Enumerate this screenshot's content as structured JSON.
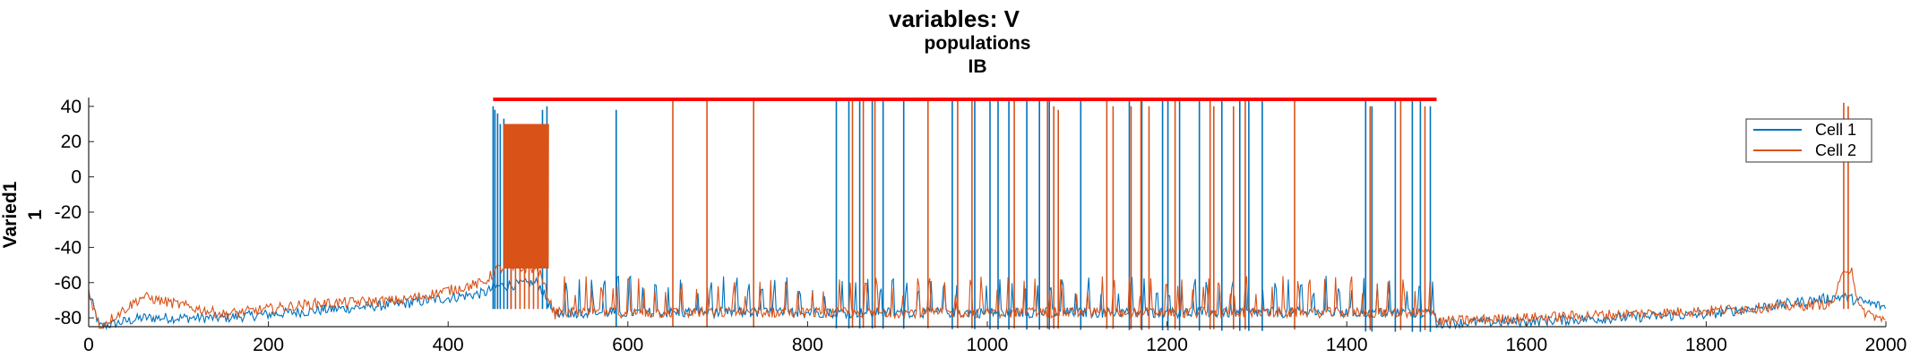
{
  "chart_data": {
    "type": "line",
    "title": [
      "variables: V",
      "populations",
      "IB"
    ],
    "ylabel": [
      "Varied1",
      "1"
    ],
    "xlabel": "",
    "xlim": [
      0,
      2000
    ],
    "ylim": [
      -85,
      45
    ],
    "xticks": [
      0,
      200,
      400,
      600,
      800,
      1000,
      1200,
      1400,
      1600,
      1800,
      2000
    ],
    "yticks": [
      40,
      20,
      0,
      -20,
      -40,
      -60,
      -80
    ],
    "grid": false,
    "legend_position": "top-right",
    "colors": {
      "cell1": "#0072bd",
      "cell2": "#d95319",
      "raster": "#ff0000"
    },
    "raster_line": {
      "x": [
        450,
        1500
      ],
      "y": 44
    },
    "series": [
      {
        "name": "Cell 1",
        "color": "#0072bd",
        "baseline": [
          [
            0,
            -65
          ],
          [
            12,
            -85
          ],
          [
            60,
            -80
          ],
          [
            150,
            -80
          ],
          [
            250,
            -76
          ],
          [
            350,
            -72
          ],
          [
            440,
            -66
          ],
          [
            455,
            -62
          ],
          [
            500,
            -60
          ],
          [
            520,
            -80
          ],
          [
            1500,
            -83
          ],
          [
            1600,
            -82
          ],
          [
            1800,
            -78
          ],
          [
            1950,
            -68
          ],
          [
            2000,
            -74
          ]
        ],
        "bursts": [
          [
            450,
            40
          ],
          [
            452,
            38
          ],
          [
            455,
            36
          ],
          [
            458,
            30
          ],
          [
            462,
            33
          ],
          [
            466,
            30
          ],
          [
            470,
            28
          ],
          [
            505,
            38
          ],
          [
            510,
            40
          ],
          [
            587,
            38
          ],
          [
            832,
            44
          ],
          [
            846,
            44
          ],
          [
            858,
            44
          ],
          [
            872,
            44
          ],
          [
            884,
            44
          ],
          [
            907,
            44
          ],
          [
            961,
            44
          ],
          [
            986,
            44
          ],
          [
            1003,
            44
          ],
          [
            1012,
            44
          ],
          [
            1024,
            44
          ],
          [
            1044,
            44
          ],
          [
            1058,
            44
          ],
          [
            1069,
            44
          ],
          [
            1104,
            44
          ],
          [
            1158,
            44
          ],
          [
            1172,
            44
          ],
          [
            1195,
            44
          ],
          [
            1201,
            44
          ],
          [
            1214,
            44
          ],
          [
            1236,
            44
          ],
          [
            1261,
            44
          ],
          [
            1281,
            44
          ],
          [
            1291,
            44
          ],
          [
            1306,
            44
          ],
          [
            1421,
            44
          ],
          [
            1428,
            40
          ],
          [
            1454,
            44
          ],
          [
            1473,
            44
          ],
          [
            1482,
            44
          ],
          [
            1493,
            40
          ]
        ]
      },
      {
        "name": "Cell 2",
        "color": "#d95319",
        "baseline": [
          [
            0,
            -65
          ],
          [
            12,
            -85
          ],
          [
            60,
            -68
          ],
          [
            150,
            -78
          ],
          [
            250,
            -72
          ],
          [
            350,
            -70
          ],
          [
            440,
            -60
          ],
          [
            455,
            -52
          ],
          [
            500,
            -52
          ],
          [
            520,
            -80
          ],
          [
            1500,
            -82
          ],
          [
            1600,
            -80
          ],
          [
            1800,
            -76
          ],
          [
            1940,
            -72
          ],
          [
            1955,
            -52
          ],
          [
            1962,
            -52
          ],
          [
            1970,
            -75
          ],
          [
            2000,
            -82
          ]
        ],
        "bursts": [
          [
            470,
            30
          ],
          [
            475,
            30
          ],
          [
            480,
            30
          ],
          [
            485,
            30
          ],
          [
            490,
            30
          ],
          [
            495,
            30
          ],
          [
            500,
            30
          ],
          [
            650,
            44
          ],
          [
            688,
            44
          ],
          [
            740,
            44
          ],
          [
            850,
            44
          ],
          [
            862,
            44
          ],
          [
            875,
            44
          ],
          [
            934,
            44
          ],
          [
            967,
            44
          ],
          [
            983,
            44
          ],
          [
            1030,
            44
          ],
          [
            1067,
            44
          ],
          [
            1074,
            40
          ],
          [
            1079,
            38
          ],
          [
            1133,
            44
          ],
          [
            1140,
            40
          ],
          [
            1160,
            40
          ],
          [
            1171,
            44
          ],
          [
            1180,
            40
          ],
          [
            1209,
            44
          ],
          [
            1248,
            44
          ],
          [
            1252,
            40
          ],
          [
            1274,
            40
          ],
          [
            1287,
            44
          ],
          [
            1342,
            44
          ],
          [
            1426,
            40
          ],
          [
            1460,
            44
          ],
          [
            1487,
            40
          ],
          [
            1953,
            42
          ],
          [
            1958,
            40
          ]
        ]
      }
    ]
  }
}
